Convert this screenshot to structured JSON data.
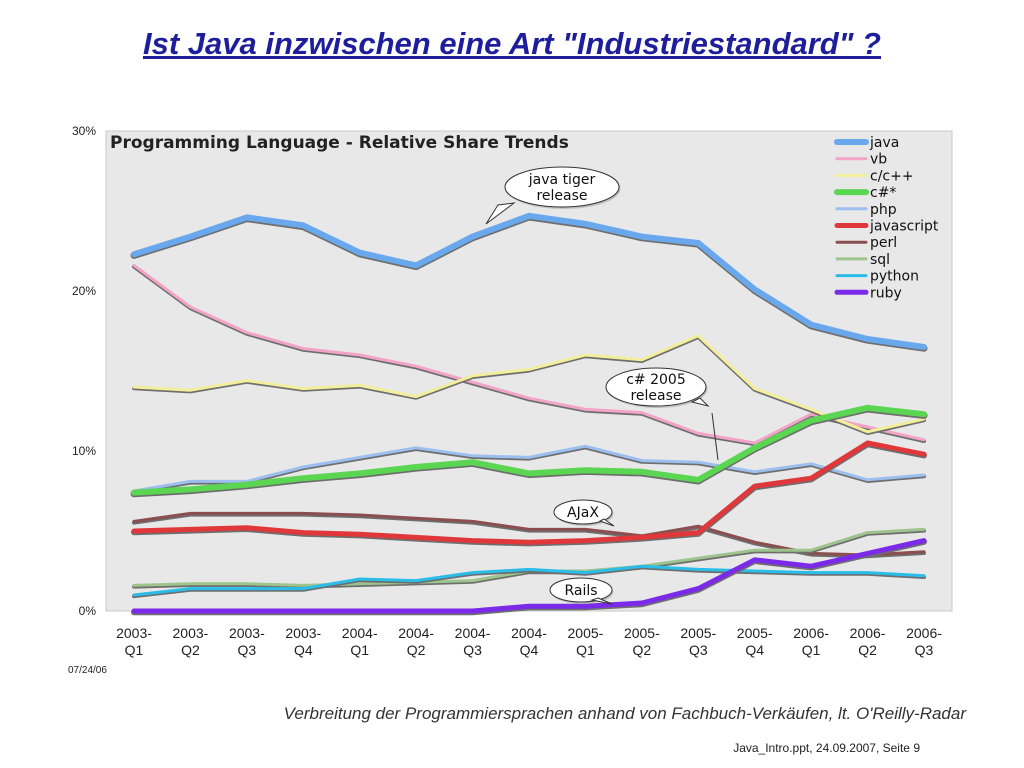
{
  "slide": {
    "title": "Ist Java inzwischen eine Art \"Industriestandard\" ?",
    "caption": "Verbreitung der Programmiersprachen anhand von Fachbuch-Verkäufen, lt. O'Reilly-Radar",
    "footer": "Java_Intro.ppt, 24.09.2007, Seite 9"
  },
  "chart_data": {
    "type": "line",
    "title": "Programming Language - Relative Share Trends",
    "date_stamp": "07/24/06",
    "categories": [
      [
        "2003-",
        "Q1"
      ],
      [
        "2003-",
        "Q2"
      ],
      [
        "2003-",
        "Q3"
      ],
      [
        "2003-",
        "Q4"
      ],
      [
        "2004-",
        "Q1"
      ],
      [
        "2004-",
        "Q2"
      ],
      [
        "2004-",
        "Q3"
      ],
      [
        "2004-",
        "Q4"
      ],
      [
        "2005-",
        "Q1"
      ],
      [
        "2005-",
        "Q2"
      ],
      [
        "2005-",
        "Q3"
      ],
      [
        "2005-",
        "Q4"
      ],
      [
        "2006-",
        "Q1"
      ],
      [
        "2006-",
        "Q2"
      ],
      [
        "2006-",
        "Q3"
      ]
    ],
    "ylim": [
      0,
      30
    ],
    "yticks": [
      {
        "value": 0,
        "label": "0%"
      },
      {
        "value": 10,
        "label": "10%"
      },
      {
        "value": 20,
        "label": "20%"
      },
      {
        "value": 30,
        "label": "30%"
      }
    ],
    "grid": false,
    "legend": "top-right",
    "series": [
      {
        "name": "java",
        "color": "#6aa8ee",
        "width": 5,
        "values": [
          22.3,
          23.4,
          24.6,
          24.1,
          22.4,
          21.6,
          23.4,
          24.7,
          24.2,
          23.4,
          23.0,
          20.1,
          17.9,
          17.0,
          16.5
        ]
      },
      {
        "name": "vb",
        "color": "#f2a3c8",
        "width": 2,
        "values": [
          21.6,
          19.0,
          17.4,
          16.4,
          16.0,
          15.3,
          14.3,
          13.3,
          12.6,
          12.4,
          11.1,
          10.5,
          12.3,
          11.5,
          10.7
        ]
      },
      {
        "name": "c/c++",
        "color": "#f3ee9c",
        "width": 2,
        "values": [
          14.0,
          13.8,
          14.4,
          13.9,
          14.1,
          13.4,
          14.7,
          15.1,
          16.0,
          15.7,
          17.2,
          13.9,
          12.6,
          11.2,
          12.0
        ]
      },
      {
        "name": "c#*",
        "color": "#5ad652",
        "width": 5,
        "values": [
          7.4,
          7.6,
          7.9,
          8.3,
          8.6,
          9.0,
          9.3,
          8.6,
          8.8,
          8.7,
          8.2,
          10.2,
          11.9,
          12.7,
          12.3
        ]
      },
      {
        "name": "php",
        "color": "#9cbfef",
        "width": 2,
        "values": [
          7.5,
          8.1,
          8.1,
          9.0,
          9.6,
          10.2,
          9.7,
          9.6,
          10.3,
          9.4,
          9.3,
          8.7,
          9.2,
          8.2,
          8.5
        ]
      },
      {
        "name": "javascript",
        "color": "#e0383a",
        "width": 4,
        "values": [
          5.0,
          5.1,
          5.2,
          4.9,
          4.8,
          4.6,
          4.4,
          4.3,
          4.4,
          4.6,
          4.9,
          7.8,
          8.3,
          10.5,
          9.8
        ]
      },
      {
        "name": "perl",
        "color": "#8c4e4e",
        "width": 2,
        "values": [
          5.6,
          6.1,
          6.1,
          6.1,
          6.0,
          5.8,
          5.6,
          5.1,
          5.1,
          4.7,
          5.3,
          4.3,
          3.6,
          3.5,
          3.7
        ]
      },
      {
        "name": "sql",
        "color": "#9cc48c",
        "width": 2,
        "values": [
          1.6,
          1.7,
          1.7,
          1.6,
          1.7,
          1.8,
          1.9,
          2.5,
          2.5,
          2.8,
          3.3,
          3.8,
          3.8,
          4.9,
          5.1
        ]
      },
      {
        "name": "python",
        "color": "#2bbde8",
        "width": 2,
        "values": [
          1.0,
          1.4,
          1.4,
          1.4,
          2.0,
          1.9,
          2.4,
          2.6,
          2.4,
          2.8,
          2.6,
          2.5,
          2.4,
          2.4,
          2.2
        ]
      },
      {
        "name": "ruby",
        "color": "#7a2ae8",
        "width": 4,
        "values": [
          0.0,
          0.0,
          0.0,
          0.0,
          0.0,
          0.0,
          0.0,
          0.3,
          0.3,
          0.5,
          1.4,
          3.2,
          2.8,
          3.6,
          4.4
        ]
      }
    ],
    "annotations": [
      {
        "id": "java-tiger",
        "lines": [
          "java tiger",
          "release"
        ],
        "at_category": 7
      },
      {
        "id": "csharp-2005",
        "lines": [
          "c# 2005",
          "release"
        ],
        "at_category": 10
      },
      {
        "id": "ajax",
        "lines": [
          "AJaX"
        ],
        "at_category": 9
      },
      {
        "id": "rails",
        "lines": [
          "Rails"
        ],
        "at_category": 9
      }
    ]
  }
}
